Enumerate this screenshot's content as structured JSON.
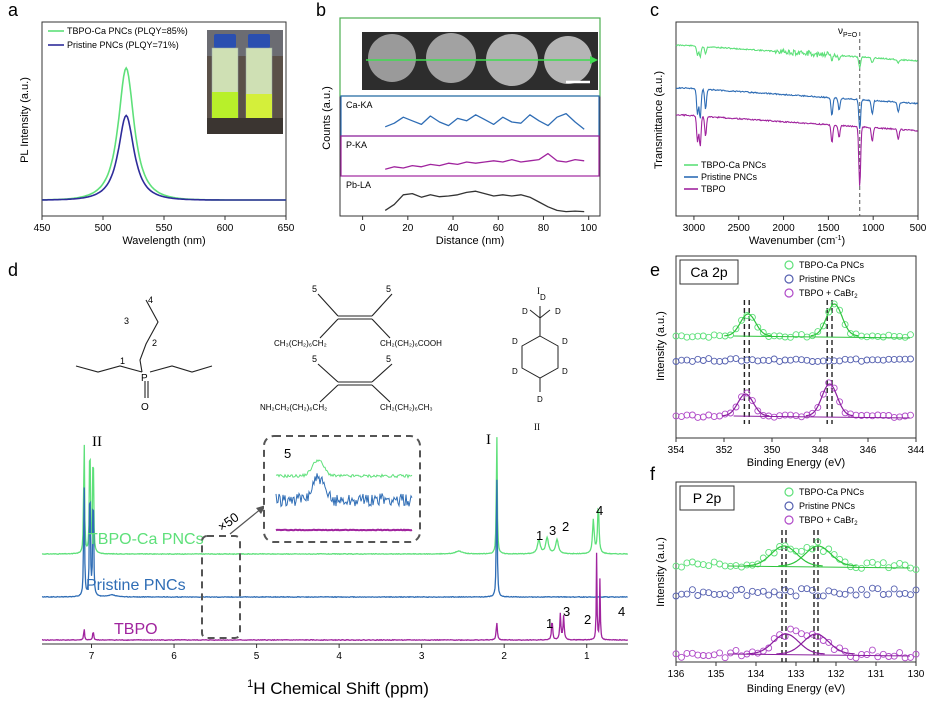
{
  "panels": {
    "a": {
      "letter": "a",
      "chart_data": {
        "type": "line",
        "xlabel": "Wavelength (nm)",
        "ylabel": "PL Intensity (a.u.)",
        "xlim": [
          450,
          650
        ],
        "xticks": [
          450,
          500,
          550,
          600,
          650
        ],
        "legend_position": "top-left",
        "series": [
          {
            "name": "TBPO-Ca PNCs (PLQY=85%)",
            "color": "#5ee07a",
            "peak_x": 519,
            "peak_y": 1.0,
            "width": 10
          },
          {
            "name": "Pristine PNCs (PLQY=71%)",
            "color": "#2e2c9a",
            "peak_x": 519,
            "peak_y": 0.64,
            "width": 10
          }
        ]
      }
    },
    "b": {
      "letter": "b",
      "chart_data": {
        "type": "line",
        "xlabel": "Distance (nm)",
        "ylabel": "Counts (a.u.)",
        "xlim": [
          -10,
          105
        ],
        "xticks": [
          0,
          20,
          40,
          60,
          80,
          100
        ],
        "series": [
          {
            "name": "Ca-KA",
            "color": "#2f6db5",
            "x": [
              10,
              14,
              18,
              22,
              26,
              30,
              34,
              38,
              42,
              46,
              50,
              54,
              58,
              62,
              66,
              70,
              74,
              78,
              82,
              86,
              90,
              94,
              98
            ],
            "y": [
              0.3,
              0.45,
              0.7,
              0.55,
              0.4,
              0.75,
              0.5,
              0.35,
              0.65,
              0.55,
              0.8,
              0.6,
              0.4,
              0.7,
              0.5,
              0.45,
              0.8,
              0.55,
              0.35,
              0.7,
              0.85,
              0.5,
              0.2
            ]
          },
          {
            "name": "P-KA",
            "color": "#a0249e",
            "x": [
              10,
              14,
              18,
              22,
              26,
              30,
              34,
              38,
              42,
              46,
              50,
              54,
              58,
              62,
              66,
              70,
              74,
              78,
              82,
              86,
              90,
              94,
              98
            ],
            "y": [
              0.2,
              0.3,
              0.25,
              0.35,
              0.3,
              0.4,
              0.35,
              0.45,
              0.4,
              0.5,
              0.45,
              0.5,
              0.55,
              0.5,
              0.6,
              0.5,
              0.55,
              0.6,
              0.85,
              0.55,
              0.5,
              0.6,
              0.55
            ]
          },
          {
            "name": "Pb-LA",
            "color": "#333333",
            "x": [
              10,
              14,
              18,
              22,
              26,
              30,
              34,
              38,
              42,
              46,
              50,
              54,
              58,
              62,
              66,
              70,
              74,
              78,
              82,
              86,
              90,
              94,
              98
            ],
            "y": [
              0.15,
              0.4,
              0.8,
              0.85,
              0.7,
              0.8,
              0.72,
              0.75,
              0.8,
              0.9,
              0.95,
              0.85,
              0.75,
              0.8,
              0.75,
              0.8,
              0.7,
              0.5,
              0.3,
              0.15,
              0.1,
              0.12,
              0.1
            ]
          }
        ]
      }
    },
    "c": {
      "letter": "c",
      "annotation_text": "ν",
      "annotation_sub": "P=O",
      "chart_data": {
        "type": "line",
        "xlabel": "Wavenumber (cm",
        "xlabel_sup": "-1",
        "xlabel_tail": ")",
        "ylabel": "Transmittance (a.u.)",
        "xlim": [
          3200,
          500
        ],
        "xticks": [
          3000,
          2500,
          2000,
          1500,
          1000,
          500
        ],
        "marker_x": 1150,
        "legend_position": "bottom-left",
        "series": [
          {
            "name": "TBPO-Ca PNCs",
            "color": "#5ee07a",
            "base": 0.12
          },
          {
            "name": "Pristine PNCs",
            "color": "#2f6db5",
            "base": 0.34
          },
          {
            "name": "TBPO",
            "color": "#a0249e",
            "base": 0.48
          }
        ]
      }
    },
    "d": {
      "letter": "d",
      "structure_labels": {
        "n4": "4",
        "n3": "3",
        "n2": "2",
        "n1": "1",
        "p": "P",
        "o": "O",
        "n5a": "5",
        "n5b": "5",
        "n5c": "5",
        "n5d": "5",
        "oleic_left": "CH₃(CH₂)₆CH₂",
        "oleic_right": "CH₂(CH₂)₆COOH",
        "amine_left": "NH₂CH₂(CH₂)₆CH₂",
        "amine_right": "CH₂(CH₂)₆CH₃",
        "tol_I": "I",
        "tol_II": "II",
        "d": "D"
      },
      "inset": {
        "label": "5",
        "magnification": "×50"
      },
      "peak_labels": {
        "II": "II",
        "I": "I",
        "p1": "1",
        "p3": "3",
        "p2": "2",
        "p4": "4"
      },
      "chart_data": {
        "type": "line",
        "xlabel": "H Chemical Shift (ppm)",
        "xlabel_sup": "1",
        "xlim": [
          7.6,
          0.5
        ],
        "xticks": [
          7,
          6,
          5,
          4,
          3,
          2,
          1
        ],
        "series": [
          {
            "name": "TBPO-Ca PNCs",
            "color": "#5ee07a",
            "baseline": 0.0
          },
          {
            "name": "Pristine PNCs",
            "color": "#2f6db5",
            "baseline": -1.0
          },
          {
            "name": "TBPO",
            "color": "#a0249e",
            "baseline": -2.0
          }
        ]
      }
    },
    "e": {
      "letter": "e",
      "box_title": "Ca 2p",
      "chart_data": {
        "type": "scatter",
        "xlabel": "Binding Energy (eV)",
        "ylabel": "Intensity (a.u.)",
        "xlim": [
          354,
          344
        ],
        "xticks": [
          354,
          352,
          350,
          348,
          346,
          344
        ],
        "legend_position": "top-right",
        "series": [
          {
            "name": "TBPO-Ca PNCs",
            "color": "#5ee07a",
            "peaks": [
              351.0,
              347.4
            ]
          },
          {
            "name": "Pristine PNCs",
            "color": "#5560b0",
            "peaks": []
          },
          {
            "name": "TBPO + CaBr",
            "sub": "2",
            "color": "#b04ac8",
            "peaks": [
              351.1,
              347.6
            ]
          }
        ],
        "dashed_lines": [
          351.15,
          350.95,
          347.7,
          347.5
        ]
      }
    },
    "f": {
      "letter": "f",
      "box_title": "P 2p",
      "chart_data": {
        "type": "scatter",
        "xlabel": "Binding Energy (eV)",
        "ylabel": "Intensity (a.u.)",
        "xlim": [
          136,
          130
        ],
        "xticks": [
          136,
          135,
          134,
          133,
          132,
          131,
          130
        ],
        "legend_position": "top-right",
        "series": [
          {
            "name": "TBPO-Ca PNCs",
            "color": "#5ee07a",
            "peaks": [
              133.3,
              132.45
            ]
          },
          {
            "name": "Pristine PNCs",
            "color": "#5560b0",
            "peaks": []
          },
          {
            "name": "TBPO + CaBr",
            "sub": "2",
            "color": "#b04ac8",
            "peaks": [
              133.25,
              132.5
            ]
          }
        ],
        "dashed_lines": [
          133.35,
          133.25,
          132.55,
          132.45
        ]
      }
    }
  }
}
